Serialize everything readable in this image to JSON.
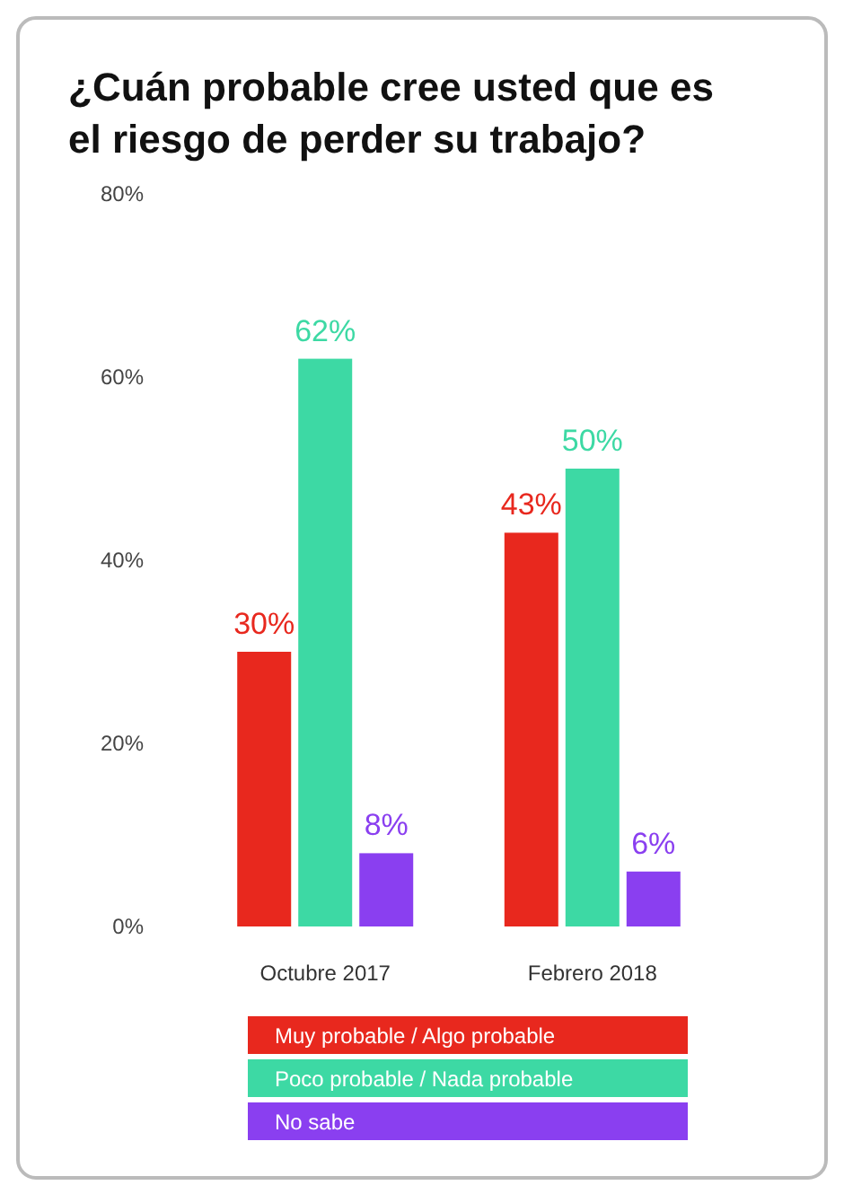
{
  "chart_data": {
    "type": "bar",
    "title": "¿Cuán probable cree usted que es el riesgo de perder su trabajo?",
    "categories": [
      "Octubre 2017",
      "Febrero 2018"
    ],
    "series": [
      {
        "name": "Muy probable / Algo probable",
        "color": "#e8281e",
        "values": [
          30,
          43
        ],
        "value_labels": [
          "30%",
          "43%"
        ]
      },
      {
        "name": "Poco probable / Nada probable",
        "color": "#3dd9a4",
        "values": [
          62,
          50
        ],
        "value_labels": [
          "62%",
          "50%"
        ]
      },
      {
        "name": "No sabe",
        "color": "#8a3ff0",
        "values": [
          8,
          6
        ],
        "value_labels": [
          "8%",
          "6%"
        ]
      }
    ],
    "ylim": [
      0,
      80
    ],
    "yticks": [
      {
        "value": 0,
        "label": "0%"
      },
      {
        "value": 20,
        "label": "20%"
      },
      {
        "value": 40,
        "label": "40%"
      },
      {
        "value": 60,
        "label": "60%"
      },
      {
        "value": 80,
        "label": "80%"
      }
    ],
    "legend": "bottom",
    "grid": false
  }
}
